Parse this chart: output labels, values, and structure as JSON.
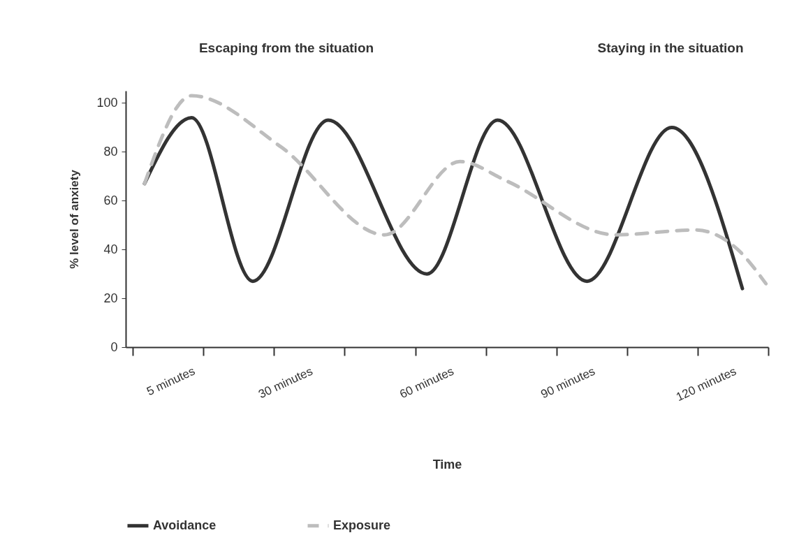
{
  "chart_data": {
    "type": "line",
    "xlabel": "Time",
    "ylabel": "% level of anxiety",
    "annotations": [
      "Escaping from the situation",
      "Staying in the situation"
    ],
    "xlim": [
      -9,
      127.5
    ],
    "xticks": [
      {
        "value": -7.5,
        "label": null
      },
      {
        "value": 5,
        "label": "5 minutes"
      },
      {
        "value": 7.5,
        "label": null
      },
      {
        "value": 22.5,
        "label": null
      },
      {
        "value": 30,
        "label": "30 minutes"
      },
      {
        "value": 37.5,
        "label": null
      },
      {
        "value": 52.5,
        "label": null
      },
      {
        "value": 60,
        "label": "60 minutes"
      },
      {
        "value": 67.5,
        "label": null
      },
      {
        "value": 82.5,
        "label": null
      },
      {
        "value": 90,
        "label": "90 minutes"
      },
      {
        "value": 97.5,
        "label": null
      },
      {
        "value": 112.5,
        "label": null
      },
      {
        "value": 120,
        "label": "120 minutes"
      },
      {
        "value": 127.5,
        "label": null
      }
    ],
    "ylim": [
      0,
      105
    ],
    "yticks": [
      0,
      20,
      40,
      60,
      80,
      100
    ],
    "grid": false,
    "legend": "bottom",
    "series": [
      {
        "name": "Avoidance",
        "color": "#333333",
        "line_style": "solid",
        "x": [
          -5,
          5,
          18,
          34,
          55,
          70,
          89,
          107,
          122
        ],
        "values": [
          67,
          94,
          27,
          93,
          30,
          93,
          27,
          90,
          24
        ]
      },
      {
        "name": "Exposure",
        "color": "#bdbdbd",
        "line_style": "dashed",
        "x": [
          -5,
          5,
          24,
          46,
          62,
          72,
          95,
          112,
          121,
          127
        ],
        "values": [
          67,
          103,
          82,
          46,
          76,
          68,
          46,
          48,
          40,
          26
        ]
      }
    ]
  }
}
